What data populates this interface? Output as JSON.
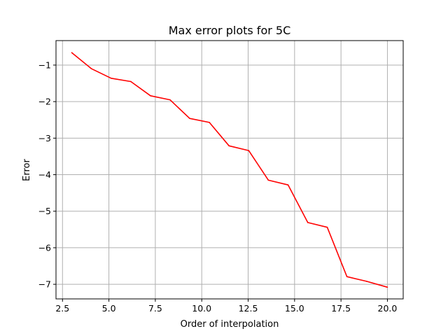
{
  "chart_data": {
    "type": "line",
    "title": "Max error plots for 5C",
    "xlabel": "Order of interpolation",
    "ylabel": "Error",
    "xlim": [
      2.15,
      20.85
    ],
    "ylim": [
      -7.4,
      -0.33
    ],
    "grid": true,
    "xticks": [
      2.5,
      5.0,
      7.5,
      10.0,
      12.5,
      15.0,
      17.5,
      20.0
    ],
    "xtick_labels": [
      "2.5",
      "5.0",
      "7.5",
      "10.0",
      "12.5",
      "15.0",
      "17.5",
      "20.0"
    ],
    "yticks": [
      -1,
      -2,
      -3,
      -4,
      -5,
      -6,
      -7
    ],
    "ytick_labels": [
      "−1",
      "−2",
      "−3",
      "−4",
      "−5",
      "−6",
      "−7"
    ],
    "series": [
      {
        "color": "#ff0000",
        "x": [
          3.0,
          4.06,
          5.12,
          6.18,
          7.24,
          8.29,
          9.35,
          10.41,
          11.47,
          12.53,
          13.59,
          14.65,
          15.71,
          16.76,
          17.82,
          18.88,
          20.0
        ],
        "y": [
          -0.66,
          -1.1,
          -1.36,
          -1.45,
          -1.84,
          -1.95,
          -2.46,
          -2.57,
          -3.21,
          -3.34,
          -4.15,
          -4.28,
          -5.31,
          -5.44,
          -6.79,
          -6.92,
          -7.08
        ]
      }
    ]
  }
}
